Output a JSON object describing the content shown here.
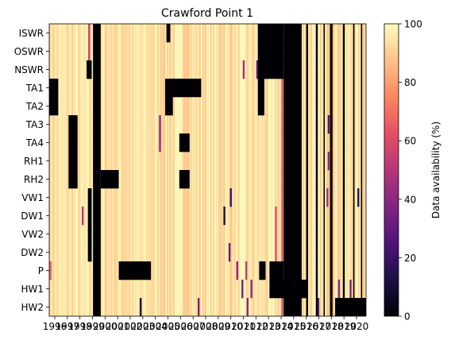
{
  "chart_data": {
    "type": "heatmap",
    "title": "Crawford Point 1",
    "xlabel": "",
    "ylabel": "",
    "x_tick_labels": [
      "1996",
      "1997",
      "1998",
      "1999",
      "2000",
      "2001",
      "2002",
      "2003",
      "2004",
      "2005",
      "2006",
      "2007",
      "2008",
      "2009",
      "2010",
      "2011",
      "2012",
      "2013",
      "2014",
      "2015",
      "2016",
      "2017",
      "2018",
      "2019",
      "2020"
    ],
    "y_categories": [
      "ISWR",
      "OSWR",
      "NSWR",
      "TA1",
      "TA2",
      "TA3",
      "TA4",
      "RH1",
      "RH2",
      "VW1",
      "DW1",
      "VW2",
      "DW2",
      "P",
      "HW1",
      "HW2"
    ],
    "colorbar": {
      "label": "Data availability (%)",
      "range": [
        0,
        100
      ],
      "ticks": [
        0,
        20,
        40,
        60,
        80,
        100
      ],
      "colormap": "magma",
      "stops": [
        "#000004",
        "#1c1044",
        "#4f127b",
        "#812581",
        "#b5367a",
        "#e55064",
        "#fb8761",
        "#fec287",
        "#fcfdbf"
      ]
    },
    "x_range": [
      1995.9,
      2020.5
    ],
    "default_value": 98,
    "zero_periods": [
      {
        "rows": "all",
        "x": [
          1999.3,
          1999.9
        ]
      },
      {
        "rows": "all",
        "x": [
          2014.1,
          2015.5
        ]
      },
      {
        "rows": "all",
        "x": [
          2015.85,
          2016.0
        ]
      },
      {
        "rows": "all",
        "x": [
          2016.6,
          2016.75
        ]
      },
      {
        "rows": "all",
        "x": [
          2017.2,
          2017.3
        ]
      },
      {
        "rows": "all",
        "x": [
          2017.7,
          2017.9
        ]
      },
      {
        "rows": "all",
        "x": [
          2018.7,
          2018.85
        ]
      },
      {
        "rows": "all",
        "x": [
          2019.5,
          2019.6
        ]
      },
      {
        "rows": "all",
        "x": [
          2020.1,
          2020.2
        ]
      },
      {
        "rows": [
          "ISWR",
          "OSWR",
          "NSWR"
        ],
        "x": [
          2012.1,
          2014.1
        ]
      },
      {
        "rows": [
          "ISWR"
        ],
        "x": [
          2005.0,
          2005.3
        ]
      },
      {
        "rows": [
          "TA1",
          "TA2"
        ],
        "x": [
          1995.9,
          1996.6
        ]
      },
      {
        "rows": [
          "TA1"
        ],
        "x": [
          2004.9,
          2007.7
        ]
      },
      {
        "rows": [
          "TA1",
          "TA2"
        ],
        "x": [
          2004.9,
          2005.5
        ]
      },
      {
        "rows": [
          "TA1",
          "TA2"
        ],
        "x": [
          2012.1,
          2012.6
        ]
      },
      {
        "rows": [
          "NSWR"
        ],
        "x": [
          1998.8,
          1999.2
        ]
      },
      {
        "rows": [
          "TA3",
          "TA4",
          "RH1",
          "RH2"
        ],
        "x": [
          1997.4,
          1998.1
        ]
      },
      {
        "rows": [
          "TA4"
        ],
        "x": [
          2006.0,
          2006.8
        ]
      },
      {
        "rows": [
          "RH2"
        ],
        "x": [
          1999.9,
          2001.3
        ]
      },
      {
        "rows": [
          "RH2"
        ],
        "x": [
          2006.0,
          2006.8
        ]
      },
      {
        "rows": [
          "VW1",
          "DW1",
          "VW2",
          "DW2"
        ],
        "x": [
          1998.9,
          1999.2
        ]
      },
      {
        "rows": [
          "P"
        ],
        "x": [
          2001.3,
          2003.8
        ]
      },
      {
        "rows": [
          "P"
        ],
        "x": [
          2012.2,
          2012.7
        ]
      },
      {
        "rows": [
          "P"
        ],
        "x": [
          2013.0,
          2014.1
        ]
      },
      {
        "rows": [
          "HW1"
        ],
        "x": [
          2013.0,
          2016.0
        ]
      },
      {
        "rows": [
          "HW2"
        ],
        "x": [
          2018.1,
          2020.5
        ]
      }
    ],
    "partial_stripes": [
      {
        "rows": "all",
        "x": 2014.0,
        "value": 60
      },
      {
        "rows": [
          "ISWR",
          "OSWR",
          "NSWR"
        ],
        "x": 1999.0,
        "value": 55
      },
      {
        "rows": [
          "NSWR"
        ],
        "x": 2011.0,
        "value": 45
      },
      {
        "rows": [
          "NSWR"
        ],
        "x": 2012.05,
        "value": 30
      },
      {
        "rows": [
          "TA3"
        ],
        "x": 2017.6,
        "value": 25
      },
      {
        "rows": [
          "TA3",
          "TA4"
        ],
        "x": 2004.5,
        "value": 40
      },
      {
        "rows": [
          "RH1"
        ],
        "x": 2017.6,
        "value": 40
      },
      {
        "rows": [
          "VW1"
        ],
        "x": 2010.0,
        "value": 20
      },
      {
        "rows": [
          "VW1"
        ],
        "x": 2017.5,
        "value": 45
      },
      {
        "rows": [
          "VW1"
        ],
        "x": 2019.9,
        "value": 15
      },
      {
        "rows": [
          "DW1"
        ],
        "x": 1998.5,
        "value": 50
      },
      {
        "rows": [
          "DW1"
        ],
        "x": 2009.5,
        "value": 10
      },
      {
        "rows": [
          "DW1",
          "VW2",
          "DW2"
        ],
        "x": 2013.5,
        "value": 60
      },
      {
        "rows": [
          "DW2"
        ],
        "x": 2009.9,
        "value": 30
      },
      {
        "rows": [
          "P"
        ],
        "x": 1996.0,
        "value": 65
      },
      {
        "rows": [
          "P"
        ],
        "x": 2010.5,
        "value": 40
      },
      {
        "rows": [
          "P"
        ],
        "x": 2011.2,
        "value": 55
      },
      {
        "rows": [
          "HW1"
        ],
        "x": 2010.9,
        "value": 35
      },
      {
        "rows": [
          "HW1"
        ],
        "x": 2011.6,
        "value": 40
      },
      {
        "rows": [
          "HW1"
        ],
        "x": 2018.4,
        "value": 40
      },
      {
        "rows": [
          "HW1"
        ],
        "x": 2019.3,
        "value": 35
      },
      {
        "rows": [
          "HW2"
        ],
        "x": 2003.0,
        "value": 10
      },
      {
        "rows": [
          "HW2"
        ],
        "x": 2007.5,
        "value": 35
      },
      {
        "rows": [
          "HW2"
        ],
        "x": 2011.3,
        "value": 40
      },
      {
        "rows": [
          "HW2"
        ],
        "x": 2016.8,
        "value": 30
      }
    ]
  }
}
